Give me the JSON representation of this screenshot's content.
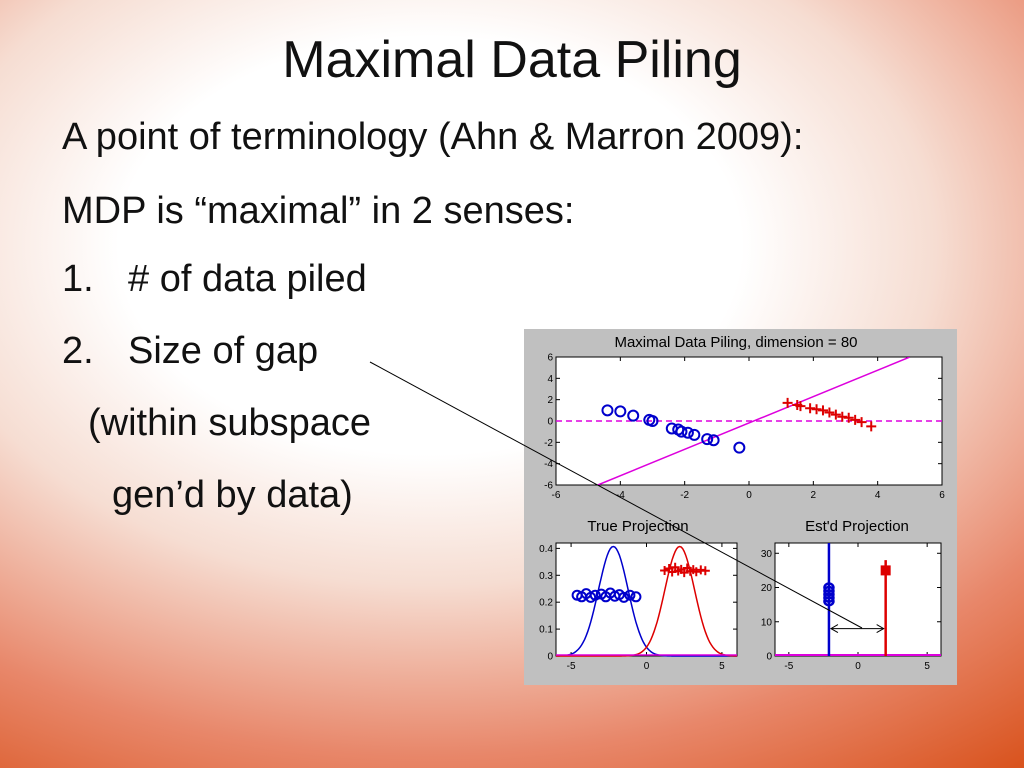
{
  "slide": {
    "title": "Maximal Data Piling",
    "line1": "A point of terminology (Ahn & Marron 2009):",
    "line2": "MDP is “maximal” in 2 senses:",
    "item1_num": "1.",
    "item1_text": "# of data piled",
    "item2_num": "2.",
    "item2_text": "Size of gap",
    "sub1": "(within subspace",
    "sub2": "gen’d by data)"
  },
  "colors": {
    "class_a": "#0000cc",
    "class_b": "#dd0000",
    "direction": "#dd00dd",
    "panel_bg": "#c0c0c0"
  },
  "chart_data": [
    {
      "type": "scatter",
      "title": "Maximal Data Piling, dimension = 80",
      "xlim": [
        -6,
        6
      ],
      "ylim": [
        -6,
        6
      ],
      "xticks": [
        -6,
        -4,
        -2,
        0,
        2,
        4,
        6
      ],
      "yticks": [
        -6,
        -4,
        -2,
        0,
        2,
        4,
        6
      ],
      "series": [
        {
          "marker": "circle",
          "color": "#0000cc",
          "x": [
            -4.4,
            -4.0,
            -3.6,
            -3.1,
            -3.0,
            -2.4,
            -2.2,
            -2.1,
            -1.9,
            -1.7,
            -1.3,
            -1.1,
            -0.3
          ],
          "y": [
            1.0,
            0.9,
            0.5,
            0.1,
            0.0,
            -0.7,
            -0.8,
            -1.0,
            -1.1,
            -1.3,
            -1.7,
            -1.8,
            -2.5
          ]
        },
        {
          "marker": "plus",
          "color": "#dd0000",
          "x": [
            1.2,
            1.5,
            1.6,
            1.9,
            2.1,
            2.3,
            2.5,
            2.7,
            2.9,
            3.1,
            3.3,
            3.5,
            3.8
          ],
          "y": [
            1.7,
            1.5,
            1.4,
            1.2,
            1.1,
            1.0,
            0.8,
            0.6,
            0.4,
            0.3,
            0.1,
            -0.1,
            -0.5
          ]
        }
      ],
      "lines": [
        {
          "style": "dashed",
          "color": "#dd00dd",
          "x": [
            -6,
            6
          ],
          "y": [
            0,
            0
          ]
        },
        {
          "style": "solid",
          "color": "#dd00dd",
          "x": [
            -4.7,
            5.0
          ],
          "y": [
            -6,
            6
          ]
        }
      ]
    },
    {
      "type": "line",
      "title": "True Projection",
      "xlim": [
        -6,
        6
      ],
      "ylim": [
        0,
        0.42
      ],
      "xticks": [
        -5,
        0,
        5
      ],
      "yticks": [
        0,
        0.1,
        0.2,
        0.3,
        0.4
      ],
      "series": [
        {
          "kind": "density",
          "color": "#0000cc",
          "mean": -2.2,
          "sd": 0.98
        },
        {
          "kind": "density",
          "color": "#dd0000",
          "mean": 2.2,
          "sd": 0.98
        },
        {
          "kind": "points",
          "marker": "circle",
          "color": "#0000cc",
          "x": [
            -4.6,
            -4.3,
            -4.0,
            -3.7,
            -3.4,
            -3.0,
            -2.7,
            -2.4,
            -2.1,
            -1.8,
            -1.5,
            -1.1,
            -0.7
          ],
          "y": [
            0.226,
            0.22,
            0.232,
            0.218,
            0.226,
            0.23,
            0.22,
            0.234,
            0.222,
            0.228,
            0.218,
            0.226,
            0.22
          ]
        },
        {
          "kind": "points",
          "marker": "plus",
          "color": "#dd0000",
          "x": [
            1.2,
            1.5,
            1.7,
            1.9,
            2.1,
            2.3,
            2.5,
            2.7,
            2.9,
            3.1,
            3.3,
            3.6,
            3.9
          ],
          "y": [
            0.318,
            0.325,
            0.312,
            0.33,
            0.316,
            0.322,
            0.31,
            0.327,
            0.315,
            0.321,
            0.313,
            0.32,
            0.317
          ]
        }
      ]
    },
    {
      "type": "bar",
      "title": "Est'd Projection",
      "xlim": [
        -6,
        6
      ],
      "ylim": [
        0,
        33
      ],
      "xticks": [
        -5,
        0,
        5
      ],
      "yticks": [
        0,
        10,
        20,
        30
      ],
      "spikes": [
        {
          "x": -2.1,
          "height": 33,
          "marker_y": [
            16,
            17,
            18,
            19,
            20
          ],
          "marker": "circle",
          "color": "#0000cc"
        },
        {
          "x": 2.0,
          "height": 28,
          "marker_y": [
            25
          ],
          "marker": "square",
          "color": "#dd0000"
        }
      ],
      "baseline_color": "#dd00dd",
      "annotation": {
        "type": "double-arrow",
        "x": [
          -2.1,
          2.0
        ],
        "y": 8
      }
    }
  ]
}
